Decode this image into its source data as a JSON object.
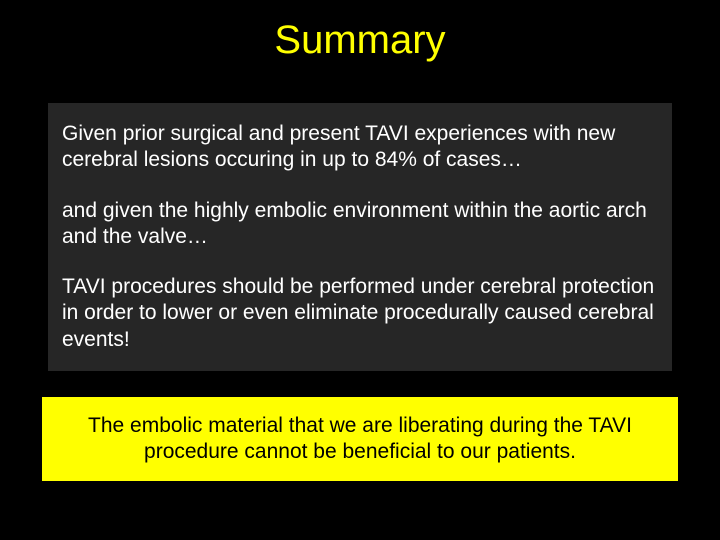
{
  "title": "Summary",
  "content": {
    "para1": "Given prior surgical and present TAVI experiences with new cerebral lesions occuring in up to 84% of cases…",
    "para2": "and given the highly embolic environment within the aortic arch and the valve…",
    "para3": "TAVI procedures should be performed  under cerebral protection in order to lower or even eliminate procedurally caused cerebral events!"
  },
  "highlight": "The embolic material that we are liberating during the TAVI procedure cannot be beneficial to our patients.",
  "colors": {
    "background": "#000000",
    "title": "#ffff00",
    "contentBox": "#262626",
    "contentText": "#ffffff",
    "highlightBox": "#ffff00",
    "highlightText": "#000000"
  },
  "typography": {
    "titleFontSize": 40,
    "bodyFontSize": 21,
    "fontFamily": "Arial"
  }
}
